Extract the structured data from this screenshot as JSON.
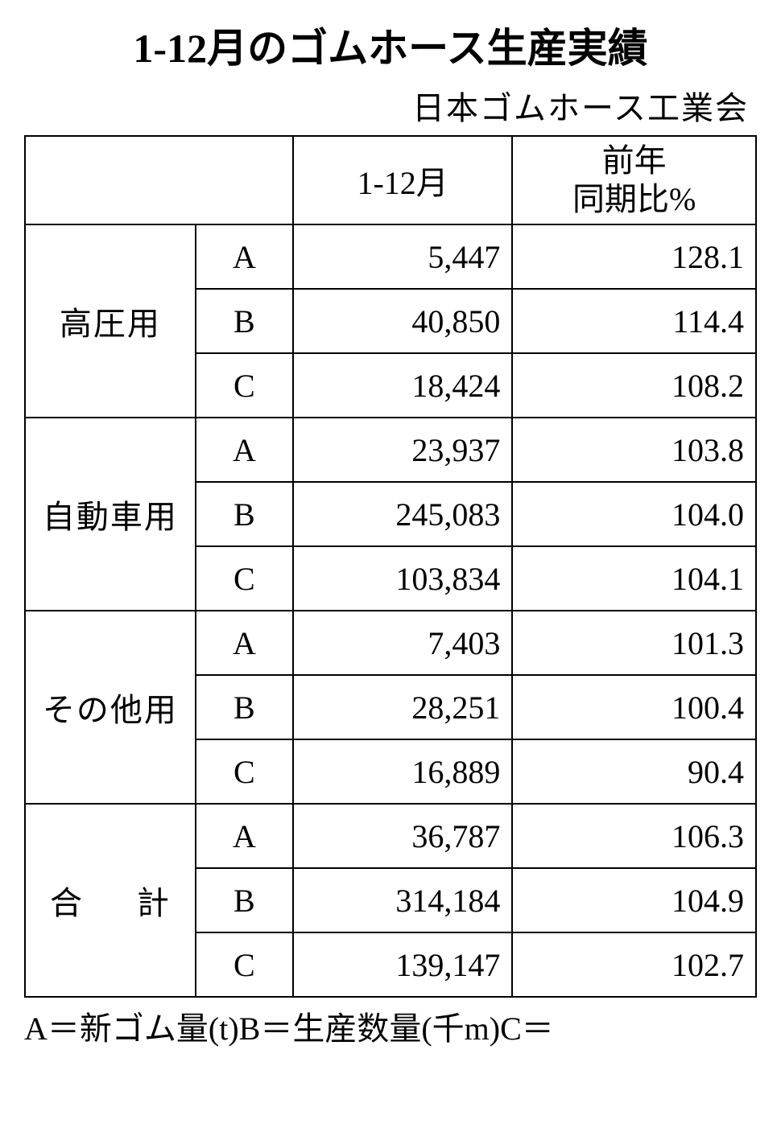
{
  "title": "1-12月のゴムホース生産実績",
  "subtitle": "日本ゴムホース工業会",
  "table": {
    "header": {
      "period": "1-12月",
      "yoy_line1": "前年",
      "yoy_line2": "同期比%"
    },
    "groups": [
      {
        "name": "高圧用",
        "rows": [
          {
            "sub": "A",
            "val": "5,447",
            "pct": "128.1"
          },
          {
            "sub": "B",
            "val": "40,850",
            "pct": "114.4"
          },
          {
            "sub": "C",
            "val": "18,424",
            "pct": "108.2"
          }
        ]
      },
      {
        "name": "自動車用",
        "rows": [
          {
            "sub": "A",
            "val": "23,937",
            "pct": "103.8"
          },
          {
            "sub": "B",
            "val": "245,083",
            "pct": "104.0"
          },
          {
            "sub": "C",
            "val": "103,834",
            "pct": "104.1"
          }
        ]
      },
      {
        "name": "その他用",
        "rows": [
          {
            "sub": "A",
            "val": "7,403",
            "pct": "101.3"
          },
          {
            "sub": "B",
            "val": "28,251",
            "pct": "100.4"
          },
          {
            "sub": "C",
            "val": "16,889",
            "pct": "90.4"
          }
        ]
      },
      {
        "name": "合　計",
        "justify": true,
        "rows": [
          {
            "sub": "A",
            "val": "36,787",
            "pct": "106.3"
          },
          {
            "sub": "B",
            "val": "314,184",
            "pct": "104.9"
          },
          {
            "sub": "C",
            "val": "139,147",
            "pct": "102.7"
          }
        ]
      }
    ]
  },
  "footnote": "A＝新ゴム量(t)B＝生産数量(千m)C＝"
}
